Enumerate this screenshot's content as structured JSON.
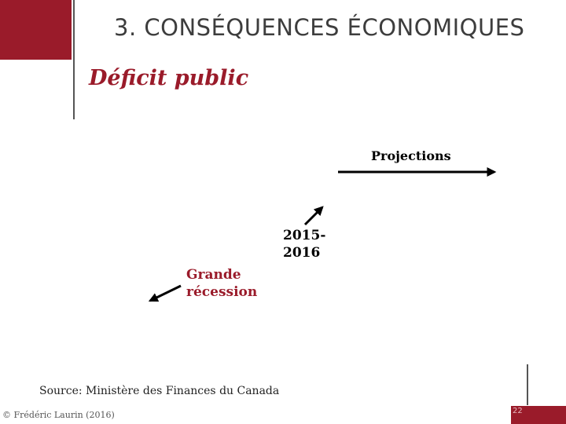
{
  "slide": {
    "title": "3. CONSÉQUENCES ÉCONOMIQUES",
    "subtitle": "Déficit public",
    "page_number": "22"
  },
  "annotations": {
    "projections": "Projections",
    "period_line1": "2015-",
    "period_line2": "2016",
    "recession_line1": "Grande",
    "recession_line2": "récession"
  },
  "footer": {
    "source": "Source: Ministère des Finances du Canada",
    "copyright": "© Frédéric Laurin (2016)"
  },
  "colors": {
    "accent": "#9a1b2a",
    "text": "#3d3d3d"
  }
}
